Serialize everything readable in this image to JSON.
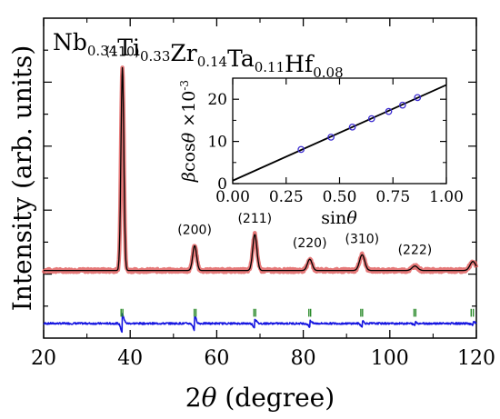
{
  "chart_data": {
    "type": "line",
    "formula": {
      "elements": [
        "Nb",
        "Ti",
        "Zr",
        "Ta",
        "Hf"
      ],
      "subscripts": [
        "0.34",
        "0.33",
        "0.14",
        "0.11",
        "0.08"
      ]
    },
    "xlabel": "2θ (degree)",
    "ylabel": "Intensity (arb. units)",
    "xlim": [
      20,
      120
    ],
    "xticks": [
      20,
      40,
      60,
      80,
      100,
      120
    ],
    "xtick_labels": [
      "20",
      "40",
      "60",
      "80",
      "100",
      "120"
    ],
    "y_tick_labels_shown": false,
    "grid": false,
    "background_level": 0.1,
    "difference_level": -0.135,
    "ylim": [
      -0.2,
      1.22
    ],
    "peaks": [
      {
        "hkl": "(110)",
        "two_theta": 38.2,
        "intensity": 0.9,
        "width": 0.55,
        "diff": 0.04
      },
      {
        "hkl": "(200)",
        "two_theta": 54.9,
        "intensity": 0.11,
        "width": 0.75,
        "diff": 0.03
      },
      {
        "hkl": "(211)",
        "two_theta": 68.8,
        "intensity": 0.16,
        "width": 0.8,
        "diff": 0.02
      },
      {
        "hkl": "(220)",
        "two_theta": 81.5,
        "intensity": 0.05,
        "width": 0.9,
        "diff": 0.015
      },
      {
        "hkl": "(310)",
        "two_theta": 93.6,
        "intensity": 0.07,
        "width": 1.0,
        "diff": 0.012
      },
      {
        "hkl": "(222)",
        "two_theta": 105.8,
        "intensity": 0.02,
        "width": 1.1,
        "diff": 0.008
      },
      {
        "hkl": "",
        "two_theta": 119.2,
        "intensity": 0.04,
        "width": 1.1,
        "diff": 0.008
      }
    ],
    "bragg_positions": [
      37.9,
      38.3,
      54.8,
      55.2,
      68.6,
      69.0,
      81.3,
      81.7,
      93.3,
      93.7,
      105.6,
      106.0,
      118.8,
      119.3
    ],
    "colors": {
      "observed": "#e06060",
      "calculated": "#000000",
      "difference": "#1515e0",
      "bragg": "#2a8a2a",
      "inset_marker": "#3b2bd0",
      "inset_line": "#000000"
    },
    "inset": {
      "type": "scatter",
      "xlabel": "sinθ",
      "ylabel_parts": [
        "β",
        "cos",
        "θ",
        " ×10",
        "-3"
      ],
      "xlim": [
        0,
        1
      ],
      "ylim": [
        0,
        25
      ],
      "xticks": [
        0,
        0.25,
        0.5,
        0.75,
        1.0
      ],
      "xtick_labels": [
        "0.00",
        "0.25",
        "0.50",
        "0.75",
        "1.00"
      ],
      "yticks": [
        0,
        10,
        20
      ],
      "ytick_labels": [
        "0",
        "10",
        "20"
      ],
      "points": [
        {
          "x": 0.32,
          "y": 8.1
        },
        {
          "x": 0.46,
          "y": 11.0
        },
        {
          "x": 0.56,
          "y": 13.4
        },
        {
          "x": 0.65,
          "y": 15.4
        },
        {
          "x": 0.73,
          "y": 17.1
        },
        {
          "x": 0.795,
          "y": 18.6
        },
        {
          "x": 0.865,
          "y": 20.4
        }
      ],
      "fit": {
        "slope": 22.7,
        "intercept": 0.7
      }
    }
  }
}
